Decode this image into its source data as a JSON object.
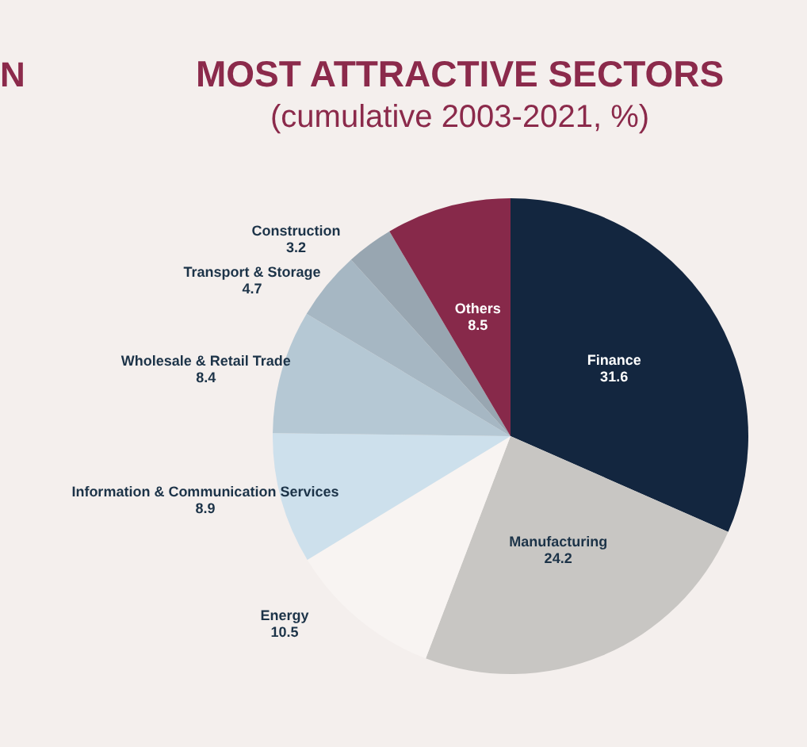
{
  "chart_data": {
    "type": "pie",
    "title": "MOST ATTRACTIVE SECTORS",
    "subtitle": "(cumulative 2003-2021, %)",
    "annotations": [
      "N"
    ],
    "categories": [
      "Finance",
      "Manufacturing",
      "Energy",
      "Information & Communication Services",
      "Wholesale & Retail Trade",
      "Transport & Storage",
      "Construction",
      "Others"
    ],
    "values": [
      31.6,
      24.2,
      10.5,
      8.9,
      8.4,
      4.7,
      3.2,
      8.5
    ],
    "colors": [
      "#13263f",
      "#c8c6c3",
      "#f8f4f2",
      "#cde0ec",
      "#b5c8d4",
      "#a6b7c3",
      "#98a6b1",
      "#87294a"
    ],
    "data_labels": true,
    "legend": false
  }
}
